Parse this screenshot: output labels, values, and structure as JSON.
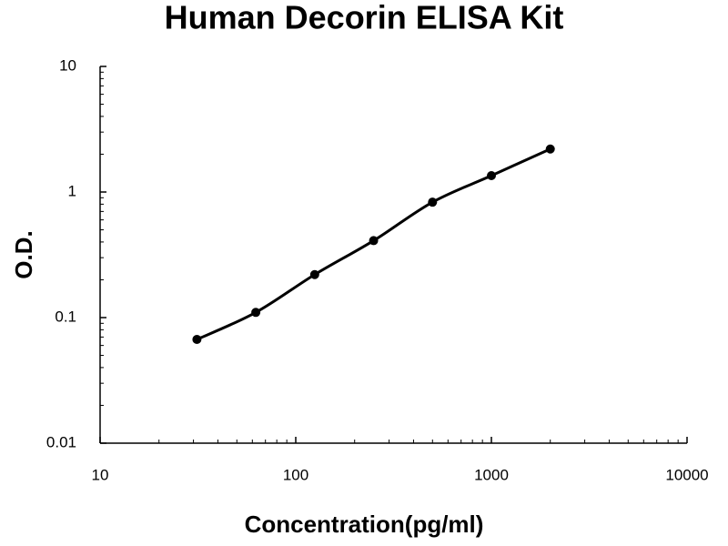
{
  "chart_data": {
    "type": "scatter",
    "title": "Human Decorin ELISA Kit",
    "x_label": "Concentration(pg/ml)",
    "y_label": "O.D.",
    "x": [
      31.25,
      62.5,
      125,
      250,
      500,
      1000,
      2000
    ],
    "series": [
      {
        "values": [
          0.067,
          0.11,
          0.22,
          0.41,
          0.83,
          1.35,
          2.2
        ],
        "color": "#000000"
      }
    ],
    "x_log": true,
    "y_log": true,
    "fit_line": true,
    "xlim": [
      10,
      10000
    ],
    "xticks": [
      10,
      100,
      1000,
      10000
    ],
    "ylim": [
      0.01,
      10
    ],
    "yticks": [
      0.01,
      0.1,
      1,
      10
    ]
  }
}
